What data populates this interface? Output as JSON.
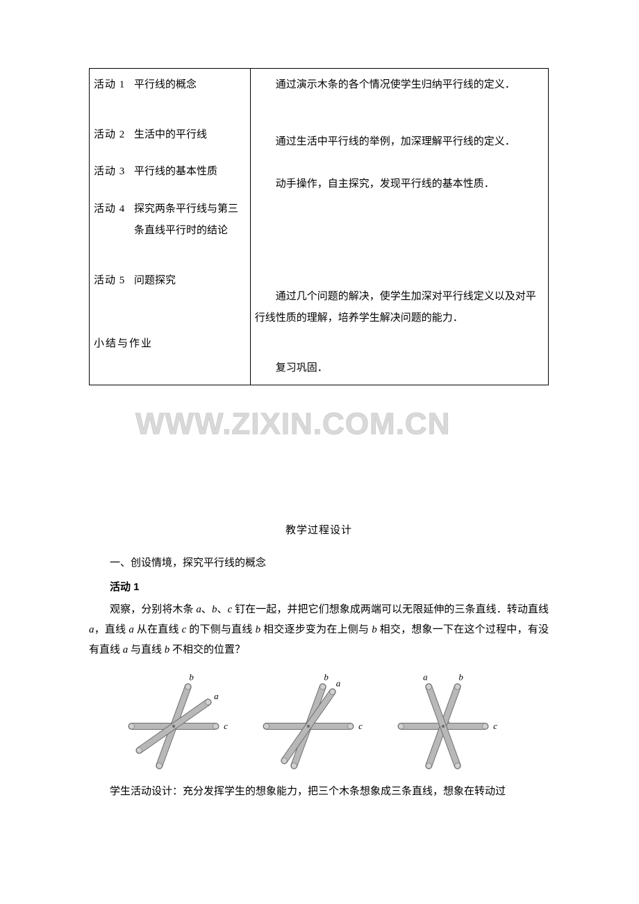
{
  "table": {
    "left": {
      "activities": [
        {
          "label": "活动 1",
          "text": "平行线的概念"
        },
        {
          "label": "活动 2",
          "text": "生活中的平行线"
        },
        {
          "label": "活动 3",
          "text": "平行线的基本性质"
        },
        {
          "label": "活动 4",
          "text": "探究两条平行线与第三条直线平行时的结论"
        },
        {
          "label": "活动 5",
          "text": "问题探究"
        }
      ],
      "summary": "小结与作业"
    },
    "right": {
      "p1": "通过演示木条的各个情况使学生归纳平行线的定义．",
      "p2": "通过生活中平行线的举例，加深理解平行线的定义．",
      "p3": "动手操作，自主探究，发现平行线的基本性质．",
      "p4": "通过几个问题的解决，使学生加深对平行线定义以及对平行线性质的理解，培养学生解决问题的能力．",
      "p5": "复习巩固．"
    }
  },
  "section_title": "教学过程设计",
  "sub_heading": "一、创设情境，探究平行线的概念",
  "activity_label": "活动 1",
  "body_text_pre": "观察，分别将木条 ",
  "body_text_mid1": "、",
  "body_text_mid2": "、",
  "body_text_post1": " 钉在一起，并把它们想象成两端可以无限延伸的三条直线．转动直线 ",
  "body_text_post2": "，直线 ",
  "body_text_post3": " 从在直线 ",
  "body_text_post4": " 的下侧与直线 ",
  "body_text_post5": " 相交逐步变为在上侧与 ",
  "body_text_post6": " 相交，想象一下在这个过程中，有没有直线 ",
  "body_text_post7": " 与直线 ",
  "body_text_post8": " 不相交的位置？",
  "vars": {
    "a": "a",
    "b": "b",
    "c": "c"
  },
  "footer_text": "学生活动设计：充分发挥学生的想象能力，把三个木条想象成三条直线，想象在转动过",
  "watermark": "WWW.ZIXIN.COM.CN",
  "colors": {
    "text": "#000000",
    "border": "#000000",
    "stick_fill": "#b8b8b8",
    "stick_stroke": "#6e6e6e",
    "tip_fill": "#d0d0d0",
    "watermark": "#d9d9d9",
    "bg": "#ffffff"
  },
  "fontsize": {
    "body": 15,
    "watermark": 44
  },
  "figure": {
    "width": 170,
    "height": 150,
    "stick_w": 9,
    "label_fs": 13
  }
}
